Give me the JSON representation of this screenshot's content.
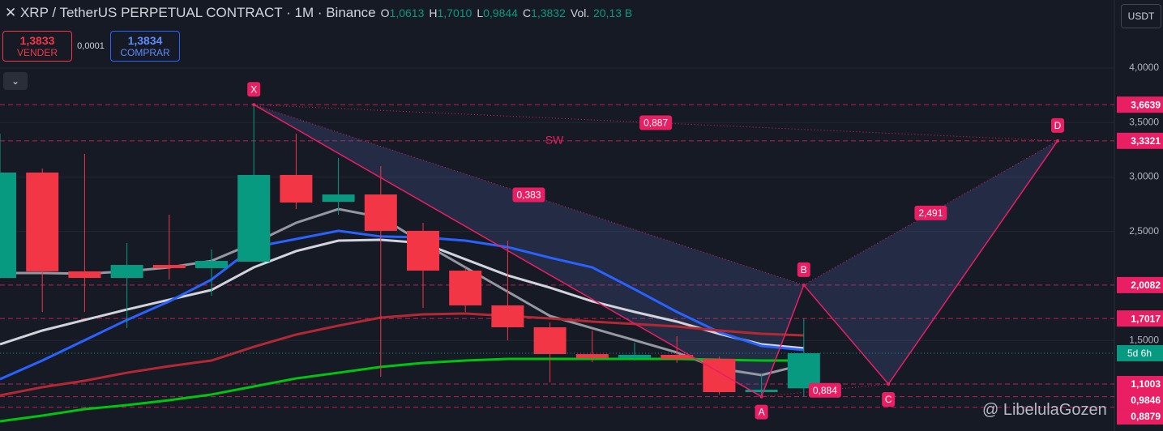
{
  "toolbar": {
    "symbol": "XRP / TetherUS PERPETUAL CONTRACT · 1M · Binance",
    "ohlc": [
      {
        "key": "O",
        "value": "1,0613"
      },
      {
        "key": "H",
        "value": "1,7010"
      },
      {
        "key": "L",
        "value": "0,9844"
      },
      {
        "key": "C",
        "value": "1,3832"
      }
    ],
    "volume_key": "Vol.",
    "volume": "20,13 B",
    "sell_price": "1,3833",
    "sell_label": "VENDER",
    "spread": "0,0001",
    "buy_price": "1,3834",
    "buy_label": "COMPRAR",
    "currency": "USDT",
    "watermark": "@ LibelulaGozen"
  },
  "chart_data": {
    "type": "candlestick",
    "title": "XRP / TetherUS PERPETUAL CONTRACT · 1M · Binance",
    "categories": [
      null,
      null,
      null,
      null,
      null,
      null,
      null,
      null,
      null,
      null,
      null,
      null,
      null,
      null,
      null,
      null,
      null,
      null,
      null,
      null
    ],
    "open": [
      2.074,
      3.041,
      2.134,
      2.074,
      2.193,
      2.164,
      2.223,
      3.019,
      2.773,
      2.84,
      2.506,
      2.141,
      1.822,
      1.621,
      1.375,
      1.338,
      1.368,
      1.331,
      1.026,
      1.0613
    ],
    "high": [
      3.398,
      3.078,
      3.212,
      2.394,
      2.654,
      2.335,
      3.6639,
      3.398,
      3.175,
      3.1,
      2.58,
      2.171,
      2.416,
      1.665,
      1.591,
      1.48,
      1.539,
      1.353,
      1.19,
      1.701
    ],
    "low": [
      2.07,
      1.762,
      1.762,
      1.613,
      2.059,
      1.911,
      2.223,
      2.706,
      2.654,
      1.167,
      1.799,
      1.762,
      1.502,
      1.115,
      1.301,
      1.316,
      1.294,
      1.004,
      0.974,
      0.9844
    ],
    "close": [
      3.041,
      2.134,
      2.074,
      2.193,
      2.164,
      2.23,
      3.019,
      2.766,
      2.84,
      2.506,
      2.141,
      1.822,
      1.621,
      1.375,
      1.338,
      1.368,
      1.331,
      1.026,
      1.048,
      1.3832
    ],
    "up_color": "#089981",
    "down_color": "#f23645",
    "series": [
      {
        "color": "#d1d4dc",
        "values": [
          1.465,
          1.591,
          1.688,
          1.784,
          1.874,
          1.963,
          2.171,
          2.32,
          2.416,
          2.424,
          2.394,
          2.245,
          2.097,
          1.985,
          1.859,
          1.762,
          1.673,
          1.561,
          1.465,
          1.428
        ]
      },
      {
        "color": "#2962ff",
        "values": [
          1.145,
          1.316,
          1.502,
          1.688,
          1.859,
          2.059,
          2.357,
          2.431,
          2.506,
          2.454,
          2.446,
          2.416,
          2.357,
          2.26,
          2.171,
          1.97,
          1.762,
          1.576,
          1.45,
          1.413
        ]
      },
      {
        "color": "#9598a1",
        "values": [
          2.119,
          2.119,
          2.112,
          2.134,
          2.171,
          2.23,
          2.394,
          2.58,
          2.706,
          2.632,
          2.394,
          2.171,
          1.948,
          1.725,
          1.613,
          1.502,
          1.39,
          1.242,
          1.182,
          1.279
        ]
      },
      {
        "color": "#b22833",
        "values": [
          0.996,
          1.071,
          1.13,
          1.204,
          1.264,
          1.316,
          1.442,
          1.554,
          1.636,
          1.71,
          1.74,
          1.747,
          1.725,
          1.703,
          1.673,
          1.651,
          1.628,
          1.591,
          1.561,
          1.546
        ]
      },
      {
        "color": "#00c510",
        "values": [
          0.758,
          0.81,
          0.87,
          0.907,
          0.952,
          1.004,
          1.078,
          1.152,
          1.204,
          1.257,
          1.294,
          1.316,
          1.331,
          1.331,
          1.331,
          1.331,
          1.331,
          1.323,
          1.316,
          1.316
        ]
      }
    ],
    "ylim": [
      0.6691,
      4.6245
    ],
    "yticks": [
      {
        "value": 4,
        "label": "4,0000"
      },
      {
        "value": 3.5,
        "label": "3,5000"
      },
      {
        "value": 3,
        "label": "3,0000"
      },
      {
        "value": 2.5,
        "label": "2,5000"
      },
      {
        "value": 1.5,
        "label": "1,5000"
      }
    ],
    "grid": true,
    "levels": [
      {
        "value": 3.6639,
        "label": "3,6639"
      },
      {
        "value": 3.3321,
        "label": "3,3321"
      },
      {
        "value": 2.0082,
        "label": "2,0082"
      },
      {
        "value": 1.7017,
        "label": "1,7017"
      },
      {
        "value": 1.1003,
        "label": "1,1003"
      },
      {
        "value": 0.9846,
        "label": "0,9846"
      },
      {
        "value": 0.8879,
        "label": "0,8879"
      }
    ],
    "level_color": "#e91e63",
    "countdown": "5d 6h",
    "pattern": {
      "name": "SW",
      "points": [
        {
          "label": "X",
          "x": 6,
          "y": 3.6639
        },
        {
          "label": "A",
          "x": 18,
          "y": 0.9846
        },
        {
          "label": "B",
          "x": 19,
          "y": 2.0082
        },
        {
          "label": "C",
          "x": 21,
          "y": 1.1003
        },
        {
          "label": "D",
          "x": 25,
          "y": 3.3321
        }
      ],
      "ratios": [
        {
          "from": 0,
          "to": 4,
          "label": "0,887"
        },
        {
          "from": 0,
          "to": 2,
          "label": "0,383"
        },
        {
          "from": 2,
          "to": 4,
          "label": "2,491"
        },
        {
          "from": 1,
          "to": 3,
          "label": "0,884"
        }
      ]
    }
  }
}
